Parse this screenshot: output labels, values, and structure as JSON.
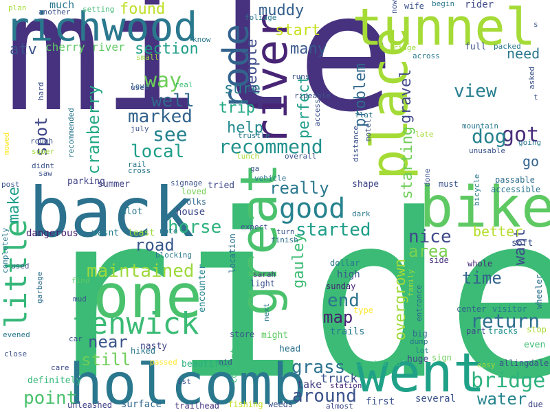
{
  "words": [
    {
      "text": "mile",
      "color": "#46327e",
      "vertical": false
    },
    {
      "text": "ride",
      "color": "#3bbb75",
      "vertical": false
    },
    {
      "text": "tunnel",
      "color": "#a5db36",
      "vertical": false
    },
    {
      "text": "back",
      "color": "#2c728e",
      "vertical": false
    },
    {
      "text": "holcomb",
      "color": "#2a788e",
      "vertical": false
    },
    {
      "text": "richwood",
      "color": "#2a788e",
      "vertical": false
    },
    {
      "text": "one",
      "color": "#4ac16d",
      "vertical": false
    },
    {
      "text": "bike",
      "color": "#5ec962",
      "vertical": false
    },
    {
      "text": "went",
      "color": "#1fa187",
      "vertical": false
    },
    {
      "text": "river",
      "color": "#482475",
      "vertical": true
    },
    {
      "text": "rode",
      "color": "#33638d",
      "vertical": true
    },
    {
      "text": "place",
      "color": "#a5db36",
      "vertical": true
    },
    {
      "text": "great",
      "color": "#4ac16d",
      "vertical": true
    },
    {
      "text": "fenwick",
      "color": "#3bbb75",
      "vertical": false
    },
    {
      "text": "good",
      "color": "#26828e",
      "vertical": false
    },
    {
      "text": "little",
      "color": "#35b779",
      "vertical": true
    },
    {
      "text": "recommend",
      "color": "#21918c",
      "vertical": false
    },
    {
      "text": "return",
      "color": "#2d708e",
      "vertical": false
    },
    {
      "text": "bridge",
      "color": "#2db27d",
      "vertical": false
    },
    {
      "text": "maintained",
      "color": "#9dd93b",
      "vertical": false
    },
    {
      "text": "local",
      "color": "#1f9e89",
      "vertical": false
    },
    {
      "text": "marked",
      "color": "#33638d",
      "vertical": false
    },
    {
      "text": "see",
      "color": "#26828e",
      "vertical": false
    },
    {
      "text": "got",
      "color": "#472d7b",
      "vertical": false
    },
    {
      "text": "dog",
      "color": "#26828e",
      "vertical": false
    },
    {
      "text": "way",
      "color": "#6ece58",
      "vertical": false
    },
    {
      "text": "well",
      "color": "#31688e",
      "vertical": false
    },
    {
      "text": "horse",
      "color": "#2db27d",
      "vertical": false
    },
    {
      "text": "started",
      "color": "#1f9e89",
      "vertical": false
    },
    {
      "text": "nice",
      "color": "#3e4a89",
      "vertical": false
    },
    {
      "text": "point",
      "color": "#4ac16d",
      "vertical": false
    },
    {
      "text": "water",
      "color": "#25848e",
      "vertical": false
    },
    {
      "text": "around",
      "color": "#3b528b",
      "vertical": false
    },
    {
      "text": "grass",
      "color": "#2c728e",
      "vertical": false
    },
    {
      "text": "end",
      "color": "#2c728e",
      "vertical": false
    },
    {
      "text": "map",
      "color": "#481f70",
      "vertical": false
    },
    {
      "text": "time",
      "color": "#33638d",
      "vertical": false
    },
    {
      "text": "area",
      "color": "#7ad151",
      "vertical": false
    },
    {
      "text": "near",
      "color": "#39558c",
      "vertical": false
    },
    {
      "text": "still",
      "color": "#6ece58",
      "vertical": false
    },
    {
      "text": "road",
      "color": "#38588c",
      "vertical": false
    },
    {
      "text": "really",
      "color": "#2a788e",
      "vertical": false
    },
    {
      "text": "view",
      "color": "#277f8e",
      "vertical": false
    },
    {
      "text": "help",
      "color": "#23898e",
      "vertical": false
    },
    {
      "text": "trip",
      "color": "#22a884",
      "vertical": false
    },
    {
      "text": "sure",
      "color": "#277f8e",
      "vertical": false
    },
    {
      "text": "muddy",
      "color": "#34608d",
      "vertical": false
    },
    {
      "text": "found",
      "color": "#bddf26",
      "vertical": false
    },
    {
      "text": "section",
      "color": "#1f9e89",
      "vertical": false
    },
    {
      "text": "start",
      "color": "#c8e020",
      "vertical": false
    },
    {
      "text": "many",
      "color": "#38588c",
      "vertical": false
    },
    {
      "text": "atv",
      "color": "#3b528b",
      "vertical": false
    },
    {
      "text": "cherry river",
      "color": "#5ec962",
      "vertical": false
    },
    {
      "text": "cranberry",
      "color": "#22a884",
      "vertical": true
    },
    {
      "text": "spot",
      "color": "#3f4788",
      "vertical": true
    },
    {
      "text": "make",
      "color": "#1f9e89",
      "vertical": true
    },
    {
      "text": "perfect",
      "color": "#1f9e89",
      "vertical": true
    },
    {
      "text": "people",
      "color": "#3e4c8a",
      "vertical": true
    },
    {
      "text": "problem",
      "color": "#31688e",
      "vertical": true
    },
    {
      "text": "gravel",
      "color": "#3f4889",
      "vertical": true
    },
    {
      "text": "starting",
      "color": "#6ece58",
      "vertical": true
    },
    {
      "text": "overgrown",
      "color": "#a0da39",
      "vertical": true
    },
    {
      "text": "gauley",
      "color": "#3dbc74",
      "vertical": true
    },
    {
      "text": "want",
      "color": "#3e4989",
      "vertical": true
    },
    {
      "text": "better",
      "color": "#b5de2b",
      "vertical": false
    },
    {
      "text": "need",
      "color": "#2a788e",
      "vertical": false
    },
    {
      "text": "go",
      "color": "#33638d",
      "vertical": false
    },
    {
      "text": "truck",
      "color": "#3b528b",
      "vertical": false
    },
    {
      "text": "shape",
      "color": "#404688",
      "vertical": false
    },
    {
      "text": "take",
      "color": "#424186",
      "vertical": false
    },
    {
      "text": "dangerous",
      "color": "#481f70",
      "vertical": false
    },
    {
      "text": "house",
      "color": "#3e4a89",
      "vertical": false
    },
    {
      "text": "parking",
      "color": "#414487",
      "vertical": false
    },
    {
      "text": "summer",
      "color": "#414487",
      "vertical": false
    },
    {
      "text": "tried",
      "color": "#3e4a89",
      "vertical": false
    },
    {
      "text": "alot",
      "color": "#2a788e",
      "vertical": false
    },
    {
      "text": "wasnt",
      "color": "#277f8e",
      "vertical": false
    },
    {
      "text": "least",
      "color": "#9dd93b",
      "vertical": false
    },
    {
      "text": "nasty",
      "color": "#404688",
      "vertical": false
    },
    {
      "text": "beautiful",
      "color": "#29af7f",
      "vertical": false
    },
    {
      "text": "hiked",
      "color": "#2a788e",
      "vertical": false
    },
    {
      "text": "encounter",
      "color": "#25858e",
      "vertical": true
    },
    {
      "text": "trails",
      "color": "#2a788e",
      "vertical": false
    },
    {
      "text": "might",
      "color": "#5ec962",
      "vertical": false
    },
    {
      "text": "head",
      "color": "#2c728e",
      "vertical": false
    },
    {
      "text": "couldnt",
      "color": "#3dbc74",
      "vertical": true
    },
    {
      "text": "store",
      "color": "#3b528b",
      "vertical": false
    },
    {
      "text": "high",
      "color": "#38588c",
      "vertical": false
    },
    {
      "text": "dollar",
      "color": "#2a788e",
      "vertical": false
    },
    {
      "text": "sunday",
      "color": "#482173",
      "vertical": false
    },
    {
      "text": "type",
      "color": "#fde725",
      "vertical": false
    },
    {
      "text": "definitely",
      "color": "#35b779",
      "vertical": false
    },
    {
      "text": "surface",
      "color": "#31688e",
      "vertical": false
    },
    {
      "text": "unleashed",
      "color": "#414487",
      "vertical": false
    },
    {
      "text": "trailhead",
      "color": "#46327e",
      "vertical": false
    },
    {
      "text": "fishing",
      "color": "#c2df23",
      "vertical": false
    },
    {
      "text": "weeds",
      "color": "#3b528b",
      "vertical": false
    },
    {
      "text": "almost",
      "color": "#3e4989",
      "vertical": false
    },
    {
      "text": "first",
      "color": "#3b528b",
      "vertical": false
    },
    {
      "text": "several",
      "color": "#3b528b",
      "vertical": false
    },
    {
      "text": "due",
      "color": "#404688",
      "vertical": false
    },
    {
      "text": "considered",
      "color": "#3dbc74",
      "vertical": false
    },
    {
      "text": "station",
      "color": "#482878",
      "vertical": false
    },
    {
      "text": "huge",
      "color": "#3e4a89",
      "vertical": false
    },
    {
      "text": "sign",
      "color": "#6ece58",
      "vertical": false
    },
    {
      "text": "lot",
      "color": "#26828e",
      "vertical": false
    },
    {
      "text": "big",
      "color": "#31688e",
      "vertical": false
    },
    {
      "text": "dump",
      "color": "#2a788e",
      "vertical": false
    },
    {
      "text": "easy",
      "color": "#9fda3a",
      "vertical": false
    },
    {
      "text": "allingdale",
      "color": "#3b528b",
      "vertical": false
    },
    {
      "text": "even",
      "color": "#3dbc74",
      "vertical": false
    },
    {
      "text": "stop",
      "color": "#a8db34",
      "vertical": false
    },
    {
      "text": "tracks",
      "color": "#21918c",
      "vertical": false
    },
    {
      "text": "part",
      "color": "#3e4989",
      "vertical": false
    },
    {
      "text": "center",
      "color": "#33638d",
      "vertical": false
    },
    {
      "text": "visitor",
      "color": "#2a788e",
      "vertical": false
    },
    {
      "text": "wheeler",
      "color": "#2d708e",
      "vertical": true
    },
    {
      "text": "whole",
      "color": "#482878",
      "vertical": false
    },
    {
      "text": "side",
      "color": "#46327e",
      "vertical": false
    },
    {
      "text": "soft",
      "color": "#3b528b",
      "vertical": false
    },
    {
      "text": "accessible",
      "color": "#2a788e",
      "vertical": false
    },
    {
      "text": "passable",
      "color": "#2e6e8e",
      "vertical": false
    },
    {
      "text": "must",
      "color": "#3b528b",
      "vertical": false
    },
    {
      "text": "entrance",
      "color": "#31688e",
      "vertical": true
    },
    {
      "text": "family",
      "color": "#9bd93c",
      "vertical": true
    },
    {
      "text": "bicycle",
      "color": "#2a788e",
      "vertical": true
    },
    {
      "text": "next",
      "color": "#2a788e",
      "vertical": true
    },
    {
      "text": "light",
      "color": "#3b528b",
      "vertical": false
    },
    {
      "text": "sarah",
      "color": "#46327e",
      "vertical": false
    },
    {
      "text": "location",
      "color": "#2c728e",
      "vertical": true
    },
    {
      "text": "turn",
      "color": "#3b528b",
      "vertical": false
    },
    {
      "text": "finish",
      "color": "#2e6e8e",
      "vertical": false
    },
    {
      "text": "expect",
      "color": "#3b528b",
      "vertical": false
    },
    {
      "text": "dark",
      "color": "#2a788e",
      "vertical": false
    },
    {
      "text": "vehicle",
      "color": "#2c728e",
      "vertical": false
    },
    {
      "text": "ga",
      "color": "#3b528b",
      "vertical": false
    },
    {
      "text": "overall",
      "color": "#3b528b",
      "vertical": false
    },
    {
      "text": "folks",
      "color": "#31688e",
      "vertical": false
    },
    {
      "text": "loved",
      "color": "#75d054",
      "vertical": false
    },
    {
      "text": "signage",
      "color": "#3b528b",
      "vertical": false
    },
    {
      "text": "note",
      "color": "#2a788e",
      "vertical": false
    },
    {
      "text": "blocking",
      "color": "#2a788e",
      "vertical": false
    },
    {
      "text": "mid",
      "color": "#3b528b",
      "vertical": false
    },
    {
      "text": "passed",
      "color": "#fde725",
      "vertical": false
    },
    {
      "text": "1st",
      "color": "#3b528b",
      "vertical": false
    },
    {
      "text": "care",
      "color": "#3e4989",
      "vertical": false
    },
    {
      "text": "close",
      "color": "#3b528b",
      "vertical": false
    },
    {
      "text": "evened",
      "color": "#2a788e",
      "vertical": false
    },
    {
      "text": "car",
      "color": "#3b528b",
      "vertical": false
    },
    {
      "text": "garbage",
      "color": "#2e6e8e",
      "vertical": true
    },
    {
      "text": "mud",
      "color": "#3b528b",
      "vertical": false
    },
    {
      "text": "find",
      "color": "#5ec962",
      "vertical": false
    },
    {
      "text": "used",
      "color": "#3b528b",
      "vertical": false
    },
    {
      "text": "completely",
      "color": "#2a788e",
      "vertical": true
    },
    {
      "text": "post",
      "color": "#3b528b",
      "vertical": false
    },
    {
      "text": "saw",
      "color": "#3b528b",
      "vertical": false
    },
    {
      "text": "didnt",
      "color": "#3b528b",
      "vertical": false
    },
    {
      "text": "rail",
      "color": "#2a788e",
      "vertical": false
    },
    {
      "text": "cross",
      "color": "#2a788e",
      "vertical": false
    },
    {
      "text": "super",
      "color": "#9dd93b",
      "vertical": false
    },
    {
      "text": "rough",
      "color": "#3b528b",
      "vertical": false
    },
    {
      "text": "mowed",
      "color": "#fde725",
      "vertical": true
    },
    {
      "text": "july",
      "color": "#3b528b",
      "vertical": false
    },
    {
      "text": "recommended",
      "color": "#2a788e",
      "vertical": true
    },
    {
      "text": "hard",
      "color": "#3b528b",
      "vertical": true
    },
    {
      "text": "use",
      "color": "#3b528b",
      "vertical": false
    },
    {
      "text": "real",
      "color": "#3dbc74",
      "vertical": false
    },
    {
      "text": "love",
      "color": "#33638d",
      "vertical": false
    },
    {
      "text": "small",
      "color": "#9dd93b",
      "vertical": false
    },
    {
      "text": "much",
      "color": "#2a788e",
      "vertical": false
    },
    {
      "text": "plan",
      "color": "#a5db36",
      "vertical": false
    },
    {
      "text": "another",
      "color": "#3b528b",
      "vertical": false
    },
    {
      "text": "setting",
      "color": "#3dbc74",
      "vertical": false
    },
    {
      "text": "know",
      "color": "#2a788e",
      "vertical": false
    },
    {
      "text": "foliage",
      "color": "#2a788e",
      "vertical": false
    },
    {
      "text": "rideable",
      "color": "#3b528b",
      "vertical": false
    },
    {
      "text": "runs",
      "color": "#3b528b",
      "vertical": false
    },
    {
      "text": "access",
      "color": "#3b528b",
      "vertical": true
    },
    {
      "text": "trustle",
      "color": "#2a788e",
      "vertical": false
    },
    {
      "text": "lunch",
      "color": "#a5db36",
      "vertical": false
    },
    {
      "text": "flat",
      "color": "#2a788e",
      "vertical": false
    },
    {
      "text": "distance",
      "color": "#3b528b",
      "vertical": true
    },
    {
      "text": "motel",
      "color": "#3b528b",
      "vertical": true
    },
    {
      "text": "now",
      "color": "#3b528b",
      "vertical": true
    },
    {
      "text": "wife",
      "color": "#3b528b",
      "vertical": false
    },
    {
      "text": "begin",
      "color": "#2a788e",
      "vertical": false
    },
    {
      "text": "rider",
      "color": "#3e4989",
      "vertical": false
    },
    {
      "text": "ridge",
      "color": "#9dd93b",
      "vertical": false
    },
    {
      "text": "across",
      "color": "#2a788e",
      "vertical": false
    },
    {
      "text": "full",
      "color": "#3b528b",
      "vertical": false
    },
    {
      "text": "packed",
      "color": "#2a788e",
      "vertical": false
    },
    {
      "text": "asked",
      "color": "#3b528b",
      "vertical": true
    },
    {
      "text": "t",
      "color": "#3b528b",
      "vertical": false
    },
    {
      "text": "s",
      "color": "#3b528b",
      "vertical": false
    },
    {
      "text": "late",
      "color": "#a5db36",
      "vertical": false
    },
    {
      "text": "mountain",
      "color": "#2a788e",
      "vertical": false
    },
    {
      "text": "going",
      "color": "#2a788e",
      "vertical": false
    },
    {
      "text": "unusable",
      "color": "#3b528b",
      "vertical": false
    },
    {
      "text": "done",
      "color": "#3b528b",
      "vertical": true
    }
  ]
}
